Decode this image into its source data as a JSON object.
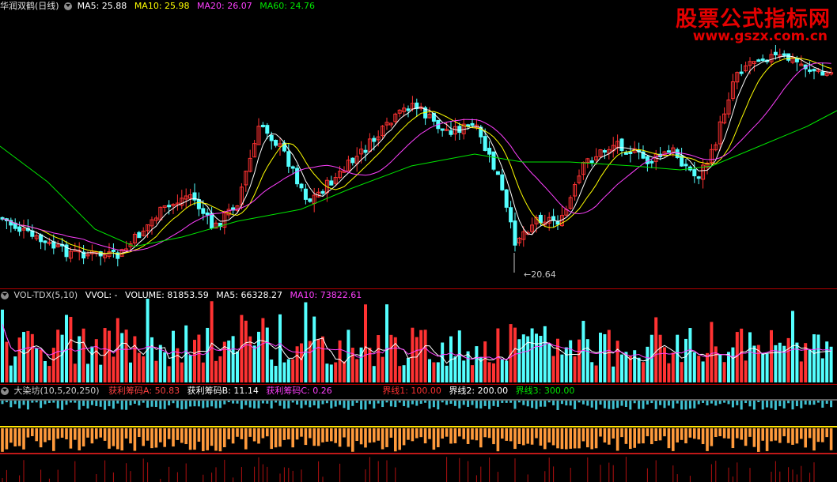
{
  "watermark": {
    "title": "股票公式指标网",
    "url": "www.gszx.com.cn"
  },
  "main_panel": {
    "stock_name": "华润双鹤(日线)",
    "ma_labels": [
      {
        "text": "MA5: 25.88",
        "color": "#ffffff"
      },
      {
        "text": "MA10: 25.98",
        "color": "#ffff00"
      },
      {
        "text": "MA20: 26.07",
        "color": "#ff40ff"
      },
      {
        "text": "MA60: 24.76",
        "color": "#00e600"
      }
    ],
    "low_marker": "20.64"
  },
  "volume_panel": {
    "name": "VOL-TDX(5,10)",
    "labels": [
      {
        "text": "VVOL: -",
        "color": "#ffffff"
      },
      {
        "text": "VOLUME: 81853.59",
        "color": "#ffffff"
      },
      {
        "text": "MA5: 66328.27",
        "color": "#ffffff"
      },
      {
        "text": "MA10: 73822.61",
        "color": "#ff40ff"
      }
    ]
  },
  "indicator_panel": {
    "name": "大染坊(10,5,20,250)",
    "labels": [
      {
        "text": "获利筹码A: 50.83",
        "color": "#ff4040"
      },
      {
        "text": "获利筹码B: 11.14",
        "color": "#ffffff"
      },
      {
        "text": "获利筹码C: 0.26",
        "color": "#ff40ff"
      },
      {
        "text": "界线1: 100.00",
        "color": "#ff3030"
      },
      {
        "text": "界线2: 200.00",
        "color": "#ffffff"
      },
      {
        "text": "界线3: 300.00",
        "color": "#00e600"
      }
    ]
  },
  "colors": {
    "up": "#ff3232",
    "down": "#54ffff",
    "ma5": "#ffffff",
    "ma10": "#ffff00",
    "ma20": "#ff40ff",
    "ma60": "#00e600",
    "separator": "#b00000"
  }
}
